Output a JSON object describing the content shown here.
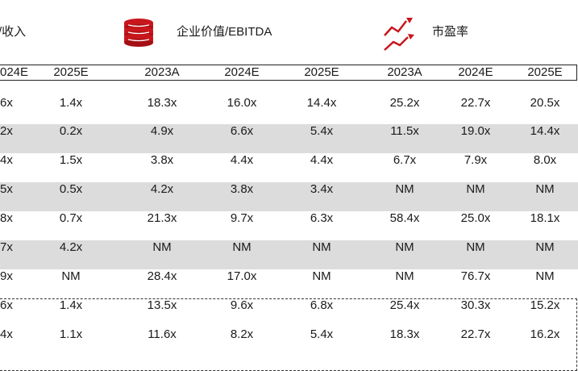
{
  "sections": {
    "revenue": {
      "title": "收入",
      "visible_prefix": "/"
    },
    "ev_ebitda": {
      "title": "企业价值/EBITDA",
      "icon": "coin-stack-icon"
    },
    "pe": {
      "title": "市盈率",
      "icon": "line-trend-icon"
    }
  },
  "columns": [
    "024E",
    "2025E",
    "2023A",
    "2024E",
    "2025E",
    "2023A",
    "2024E",
    "2025E"
  ],
  "rows": [
    [
      "6x",
      "1.4x",
      "18.3x",
      "16.0x",
      "14.4x",
      "25.2x",
      "22.7x",
      "20.5x"
    ],
    [
      "2x",
      "0.2x",
      "4.9x",
      "6.6x",
      "5.4x",
      "11.5x",
      "19.0x",
      "14.4x"
    ],
    [
      "4x",
      "1.5x",
      "3.8x",
      "4.4x",
      "4.4x",
      "6.7x",
      "7.9x",
      "8.0x"
    ],
    [
      "5x",
      "0.5x",
      "4.2x",
      "3.8x",
      "3.4x",
      "NM",
      "NM",
      "NM"
    ],
    [
      "8x",
      "0.7x",
      "21.3x",
      "9.7x",
      "6.3x",
      "58.4x",
      "25.0x",
      "18.1x"
    ],
    [
      "7x",
      "4.2x",
      "NM",
      "NM",
      "NM",
      "NM",
      "NM",
      "NM"
    ],
    [
      "9x",
      "NM",
      "28.4x",
      "17.0x",
      "NM",
      "NM",
      "76.7x",
      "NM"
    ],
    [
      "6x",
      "1.4x",
      "13.5x",
      "9.6x",
      "6.8x",
      "25.4x",
      "30.3x",
      "15.2x"
    ],
    [
      "4x",
      "1.1x",
      "11.6x",
      "8.2x",
      "5.4x",
      "18.3x",
      "22.7x",
      "16.2x"
    ]
  ],
  "colors": {
    "accent_red": "#c8161d",
    "band_gray": "#dcdcdc"
  }
}
